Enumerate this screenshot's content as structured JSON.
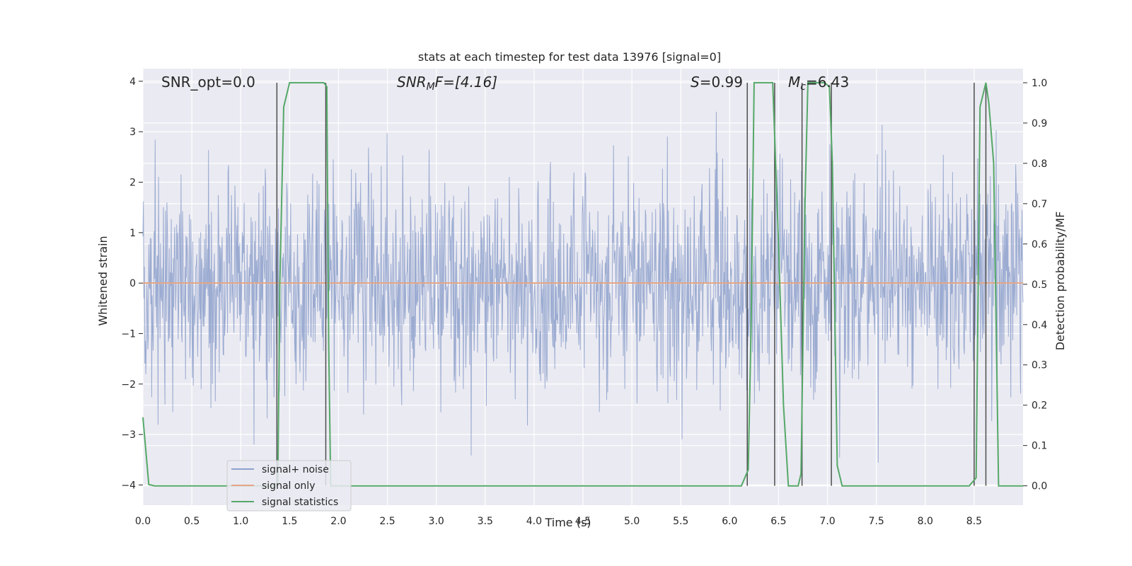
{
  "chart_data": {
    "type": "line",
    "title": "stats at each timestep for test data 13976 [signal=0]",
    "xlabel": "Time (s)",
    "ylabel": "Whitened strain",
    "y2label": "Detection probability/MF",
    "xlim": [
      0,
      9.0
    ],
    "ylim": [
      -4.4,
      4.25
    ],
    "y2lim": [
      -0.048,
      1.035
    ],
    "xticks": [
      0.0,
      0.5,
      1.0,
      1.5,
      2.0,
      2.5,
      3.0,
      3.5,
      4.0,
      4.5,
      5.0,
      5.5,
      6.0,
      6.5,
      7.0,
      7.5,
      8.0,
      8.5
    ],
    "yticks": [
      -4,
      -3,
      -2,
      -1,
      0,
      1,
      2,
      3,
      4
    ],
    "y2ticks": [
      0.0,
      0.1,
      0.2,
      0.3,
      0.4,
      0.5,
      0.6,
      0.7,
      0.8,
      0.9,
      1.0
    ],
    "grid": true,
    "legend_position": "lower-left",
    "annotations": {
      "snr_opt": "SNR_opt=0.0",
      "snr_mf_main": "SNR",
      "snr_mf_sub": "M",
      "snr_mf_rest": "F=[4.16]",
      "s_main": "S",
      "s_rest": "=0.99",
      "mc_main": "M",
      "mc_sub": "c",
      "mc_rest": "=6.43"
    },
    "series": [
      {
        "name": "signal+ noise",
        "color": "#8da0cb",
        "noise": {
          "seed": 13976,
          "sigma": 1.0,
          "n_points": 1800,
          "t_start": 0.0,
          "t_end": 9.0
        }
      },
      {
        "name": "signal only",
        "color": "#e5a583",
        "x": [
          0.0,
          9.0
        ],
        "y": [
          0.0,
          0.0
        ]
      },
      {
        "name": "signal statistics",
        "color": "#55a868",
        "axis": "right",
        "x": [
          0.0,
          0.06,
          0.12,
          0.2,
          0.3,
          0.5,
          0.8,
          1.0,
          1.2,
          1.36,
          1.38,
          1.4,
          1.44,
          1.5,
          1.6,
          1.8,
          1.85,
          1.88,
          1.9,
          1.92,
          1.95,
          2.0,
          2.5,
          3.0,
          4.0,
          5.0,
          6.0,
          6.12,
          6.19,
          6.22,
          6.25,
          6.3,
          6.4,
          6.44,
          6.5,
          6.55,
          6.6,
          6.65,
          6.7,
          6.73,
          6.77,
          6.8,
          6.9,
          6.97,
          7.02,
          7.05,
          7.1,
          7.15,
          7.2,
          7.5,
          8.0,
          8.45,
          8.52,
          8.56,
          8.62,
          8.65,
          8.7,
          8.75,
          8.8,
          8.9,
          9.0
        ],
        "y": [
          0.17,
          0.003,
          0.0,
          0.0,
          0.0,
          0.0,
          0.0,
          0.0,
          0.0,
          0.0,
          0.0,
          0.5,
          0.94,
          1.0,
          1.0,
          1.0,
          1.0,
          0.99,
          0.35,
          0.0,
          0.0,
          0.0,
          0.0,
          0.0,
          0.0,
          0.0,
          0.0,
          0.0,
          0.04,
          0.4,
          1.0,
          1.0,
          1.0,
          1.0,
          0.6,
          0.2,
          0.0,
          0.0,
          0.0,
          0.03,
          0.7,
          1.0,
          1.0,
          1.0,
          0.99,
          0.8,
          0.05,
          0.0,
          0.0,
          0.0,
          0.0,
          0.0,
          0.02,
          0.94,
          1.0,
          0.95,
          0.8,
          0.0,
          0.0,
          0.0,
          0.0
        ]
      }
    ],
    "vlines": [
      1.37,
      1.87,
      6.18,
      6.46,
      6.74,
      7.04,
      8.5,
      8.62
    ]
  }
}
